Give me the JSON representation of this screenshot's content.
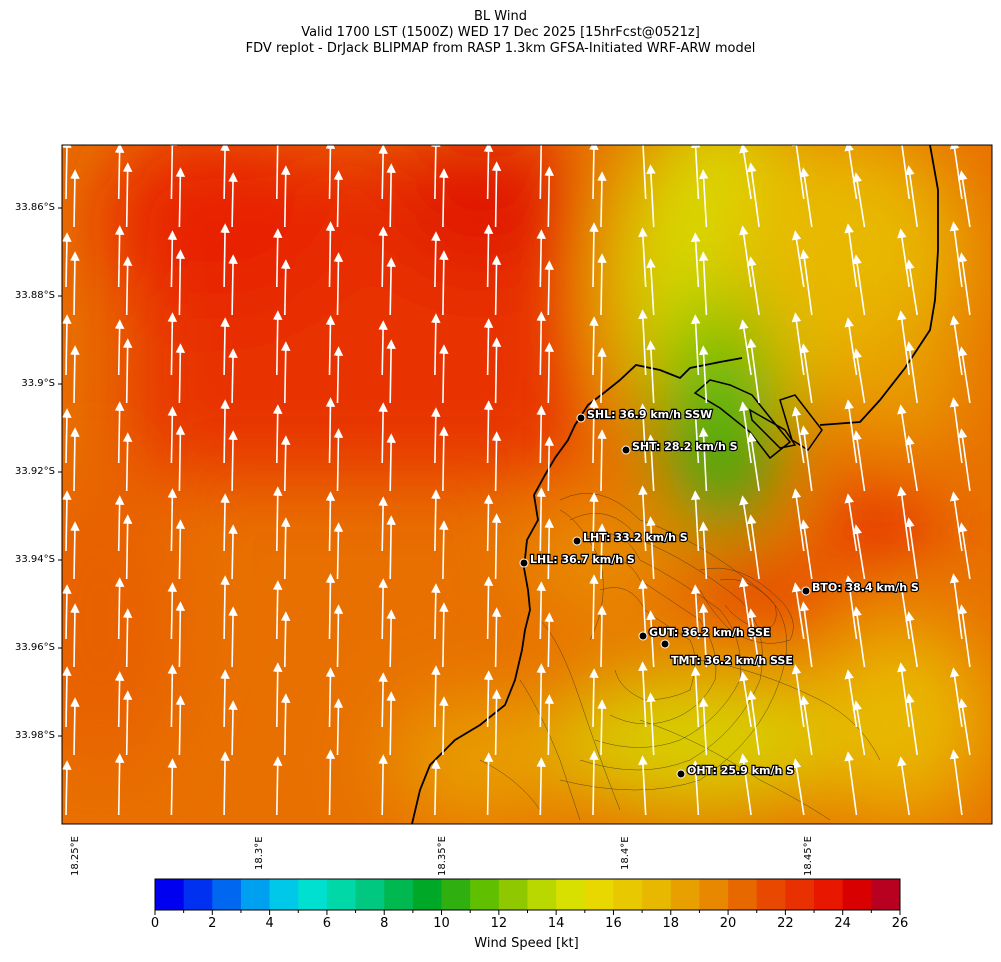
{
  "title": {
    "line1": "BL Wind",
    "line2": "Valid 1700 LST (1500Z) WED 17 Dec 2025 [15hrFcst@0521z]",
    "line3": "FDV replot - DrJack BLIPMAP from RASP 1.3km GFSA-Initiated WRF-ARW model"
  },
  "lat_labels": [
    "33.86°S",
    "33.88°S",
    "33.9°S",
    "33.92°S",
    "33.94°S",
    "33.96°S",
    "33.98°S"
  ],
  "lon_labels": [
    "18.25°E",
    "18.3°E",
    "18.35°E",
    "18.4°E",
    "18.45°E"
  ],
  "stations": [
    {
      "label": "SHL: 36.9 km/h SSW"
    },
    {
      "label": "SHT: 28.2 km/h S"
    },
    {
      "label": "LHT: 33.2 km/h S"
    },
    {
      "label": "LHL: 36.7 km/h S"
    },
    {
      "label": "BTO: 38.4 km/h S"
    },
    {
      "label": "GUT: 36.2 km/h SSE"
    },
    {
      "label": "TMT: 36.2 km/h SSE"
    },
    {
      "label": "OHT: 25.9 km/h S"
    }
  ],
  "colorbar": {
    "label": "Wind Speed [kt]",
    "ticks": [
      "0",
      "2",
      "4",
      "6",
      "8",
      "10",
      "12",
      "14",
      "16",
      "18",
      "20",
      "22",
      "24",
      "26"
    ],
    "colors": [
      "#0000f0",
      "#0030f0",
      "#0068f0",
      "#00a0f0",
      "#00c8e8",
      "#00e0d0",
      "#00d8a8",
      "#00c880",
      "#00b850",
      "#00a828",
      "#30b010",
      "#60c000",
      "#90c800",
      "#b8d800",
      "#d8e000",
      "#e8d800",
      "#e8c800",
      "#e8b800",
      "#e8a000",
      "#e88800",
      "#e86800",
      "#e84800",
      "#e83000",
      "#e81800",
      "#d80000",
      "#b80020"
    ]
  }
}
